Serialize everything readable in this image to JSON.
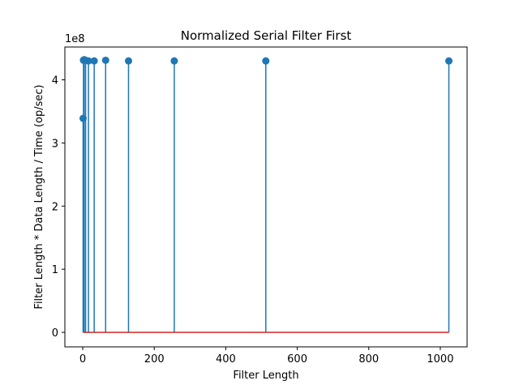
{
  "chart_data": {
    "type": "stem",
    "title": "Normalized Serial Filter First",
    "xlabel": "Filter Length",
    "ylabel": "Filter Length * Data Length / Time (op/sec)",
    "y_offset_label": "1e8",
    "y_scale": 100000000,
    "xlim": [
      -50,
      1075
    ],
    "ylim": [
      -23000000,
      452000000
    ],
    "x_ticks": [
      0,
      200,
      400,
      600,
      800,
      1000
    ],
    "x_tick_labels": [
      "0",
      "200",
      "400",
      "600",
      "800",
      "1000"
    ],
    "y_ticks": [
      0,
      100000000,
      200000000,
      300000000,
      400000000
    ],
    "y_tick_labels": [
      "0",
      "1",
      "2",
      "3",
      "4"
    ],
    "x": [
      1,
      2,
      4,
      8,
      16,
      32,
      64,
      128,
      256,
      512,
      1024
    ],
    "y": [
      339000000,
      431000000,
      432000000,
      431000000,
      430000000,
      430000000,
      431000000,
      430000000,
      430000000,
      430000000,
      430000000
    ],
    "baseline": 0,
    "grid": false,
    "colors": {
      "stem": "#1f77b4",
      "marker": "#1f77b4",
      "baseline": "#d62728"
    }
  }
}
